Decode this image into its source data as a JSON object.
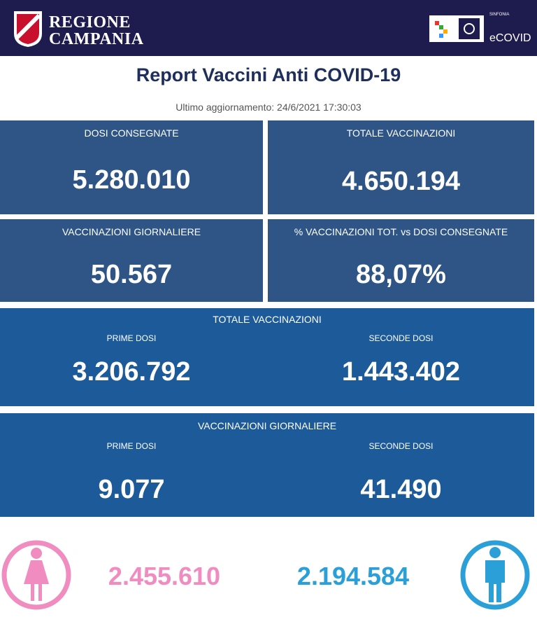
{
  "header": {
    "region_line1": "REGIONE",
    "region_line2": "CAMPANIA",
    "brand": "SINFONIA",
    "app": "eCOVID"
  },
  "title": "Report Vaccini Anti COVID-19",
  "updated": "Ultimo aggiornamento: 24/6/2021 17:30:03",
  "cards": [
    {
      "label": "DOSI  CONSEGNATE",
      "value": "5.280.010"
    },
    {
      "label": "TOTALE VACCINAZIONI",
      "value": "4.650.194"
    },
    {
      "label": "VACCINAZIONI GIORNALIERE",
      "value": "50.567"
    },
    {
      "label": "% VACCINAZIONI TOT. vs DOSI CONSEGNATE",
      "value": "88,07%"
    }
  ],
  "panels": [
    {
      "title": "TOTALE VACCINAZIONI",
      "items": [
        {
          "label": "PRIME DOSI",
          "value": "3.206.792"
        },
        {
          "label": "SECONDE DOSI",
          "value": "1.443.402"
        }
      ]
    },
    {
      "title": "VACCINAZIONI GIORNALIERE",
      "items": [
        {
          "label": "PRIME DOSI",
          "value": "9.077"
        },
        {
          "label": "SECONDE DOSI",
          "value": "41.490"
        }
      ]
    }
  ],
  "gender": {
    "female": "2.455.610",
    "male": "2.194.584"
  }
}
